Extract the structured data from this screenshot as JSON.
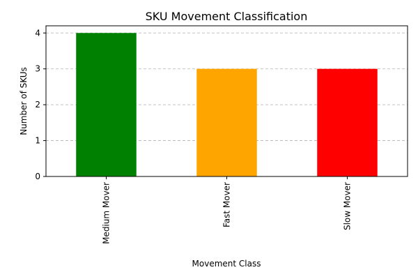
{
  "chart_data": {
    "type": "bar",
    "title": "SKU Movement Classification",
    "xlabel": "Movement Class",
    "ylabel": "Number of SKUs",
    "categories": [
      "Medium Mover",
      "Fast Mover",
      "Slow Mover"
    ],
    "values": [
      4,
      3,
      3
    ],
    "colors": [
      "#008000",
      "#FFA500",
      "#FF0000"
    ],
    "ylim": [
      0,
      4.2
    ],
    "yticks": [
      0,
      1,
      2,
      3,
      4
    ],
    "grid": {
      "y": true,
      "style": "dashed"
    }
  }
}
